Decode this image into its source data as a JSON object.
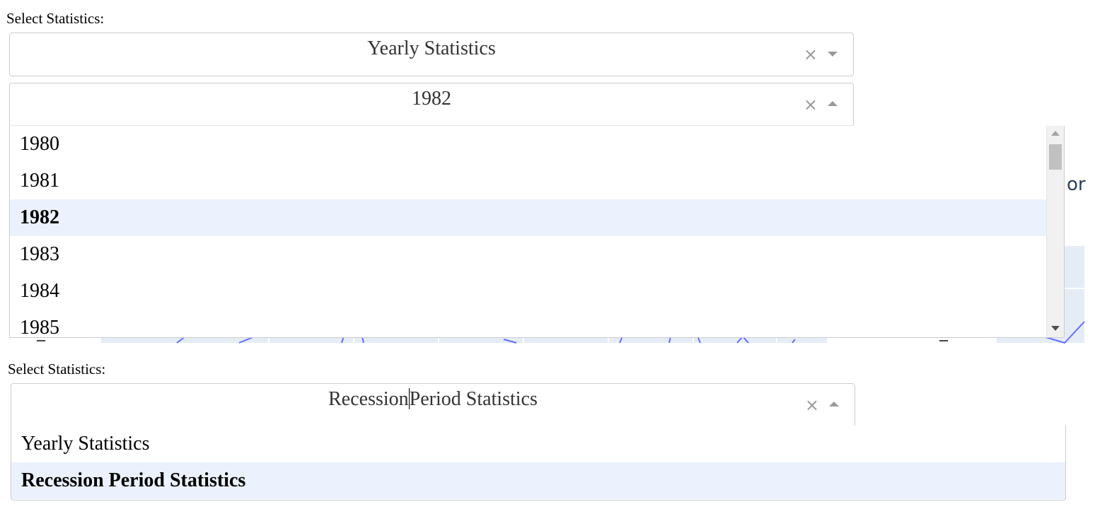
{
  "background": {
    "partial_text": "or"
  },
  "top_panel": {
    "label": "Select Statistics:",
    "stat_dropdown": {
      "value": "Yearly Statistics"
    },
    "year_dropdown": {
      "value": "1982",
      "options": [
        "1980",
        "1981",
        "1982",
        "1983",
        "1984",
        "1985"
      ],
      "selected_index": 2
    }
  },
  "bottom_panel": {
    "label": "Select Statistics:",
    "stat_dropdown": {
      "value_before_caret": "Recession",
      "value_after_caret": "Period Statistics",
      "options": [
        "Yearly Statistics",
        "Recession Period Statistics"
      ],
      "selected_index": 1
    }
  },
  "icons": {
    "clear": "clear-x-icon",
    "arrow_down": "chevron-down-icon",
    "arrow_up": "chevron-up-icon"
  }
}
